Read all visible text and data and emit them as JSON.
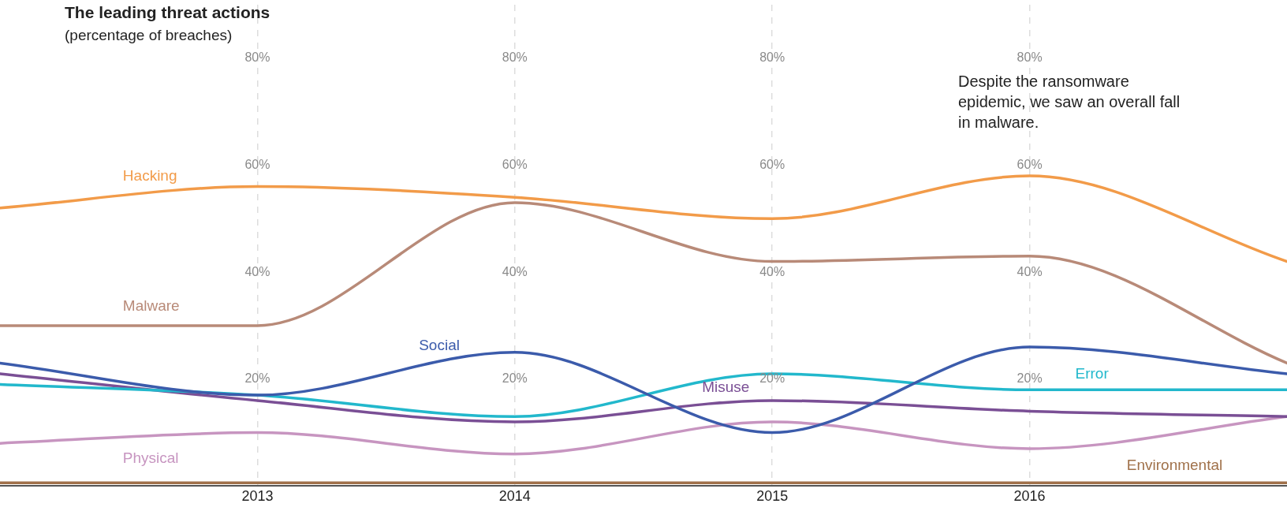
{
  "chart_data": {
    "type": "line",
    "title": "The leading threat actions",
    "subtitle": "(percentage of breaches)",
    "annotations": [
      "Despite the ransomware epidemic, we saw an overall fall in malware."
    ],
    "x": [
      2012,
      2013,
      2014,
      2015,
      2016,
      2017
    ],
    "xlim": [
      2012,
      2017
    ],
    "xticks": [
      2013,
      2014,
      2015,
      2016
    ],
    "ylim": [
      0,
      90
    ],
    "yticks": [
      {
        "value": 20,
        "label": "20%"
      },
      {
        "value": 40,
        "label": "40%"
      },
      {
        "value": 60,
        "label": "60%"
      },
      {
        "value": 80,
        "label": "80%"
      }
    ],
    "grid": "x",
    "legend": false,
    "marker": "none",
    "series": [
      {
        "name": "Hacking",
        "color": "#f29b49",
        "values": [
          52,
          56,
          54,
          50,
          58,
          42
        ]
      },
      {
        "name": "Malware",
        "color": "#b88a78",
        "values": [
          30,
          30,
          53,
          42,
          43,
          23
        ]
      },
      {
        "name": "Social",
        "color": "#3b5bab",
        "values": [
          23,
          17,
          25,
          10,
          26,
          21
        ]
      },
      {
        "name": "Error",
        "color": "#22b8cc",
        "values": [
          19,
          17,
          13,
          21,
          18,
          18
        ]
      },
      {
        "name": "Misuse",
        "color": "#7a4f95",
        "values": [
          21,
          16,
          12,
          16,
          14,
          13
        ]
      },
      {
        "name": "Physical",
        "color": "#c795c0",
        "values": [
          8,
          10,
          6,
          12,
          7,
          13
        ]
      },
      {
        "name": "Environmental",
        "color": "#a0714a",
        "values": [
          0.6,
          0.6,
          0.6,
          0.6,
          0.6,
          0.6
        ]
      }
    ]
  }
}
